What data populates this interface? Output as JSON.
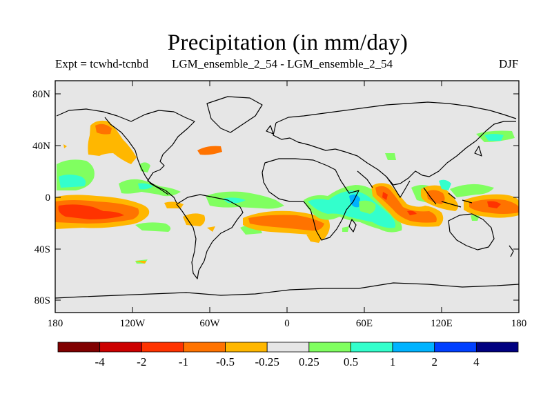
{
  "title": "Precipitation (in mm/day)",
  "subtitle_left": "Expt = tcwhd-tcnbd",
  "subtitle_center": "LGM_ensemble_2_54 - LGM_ensemble_2_54",
  "subtitle_right": "DJF",
  "map": {
    "projection": "cylindrical-equidistant",
    "background_color": "#e6e6e6",
    "lat_ticks": [
      "80N",
      "40N",
      "0",
      "40S",
      "80S"
    ],
    "lon_ticks": [
      "180",
      "120W",
      "60W",
      "0",
      "60E",
      "120E",
      "180"
    ]
  },
  "colorbar": {
    "colors": [
      "#800000",
      "#cc0000",
      "#ff3300",
      "#ff7300",
      "#ffb700",
      "#e6e6e6",
      "#80ff60",
      "#33ffcc",
      "#00b3ff",
      "#0040ff",
      "#000080"
    ],
    "labels": [
      "-4",
      "-2",
      "-1",
      "-0.5",
      "-0.25",
      "0.25",
      "0.5",
      "1",
      "2",
      "4"
    ]
  }
}
